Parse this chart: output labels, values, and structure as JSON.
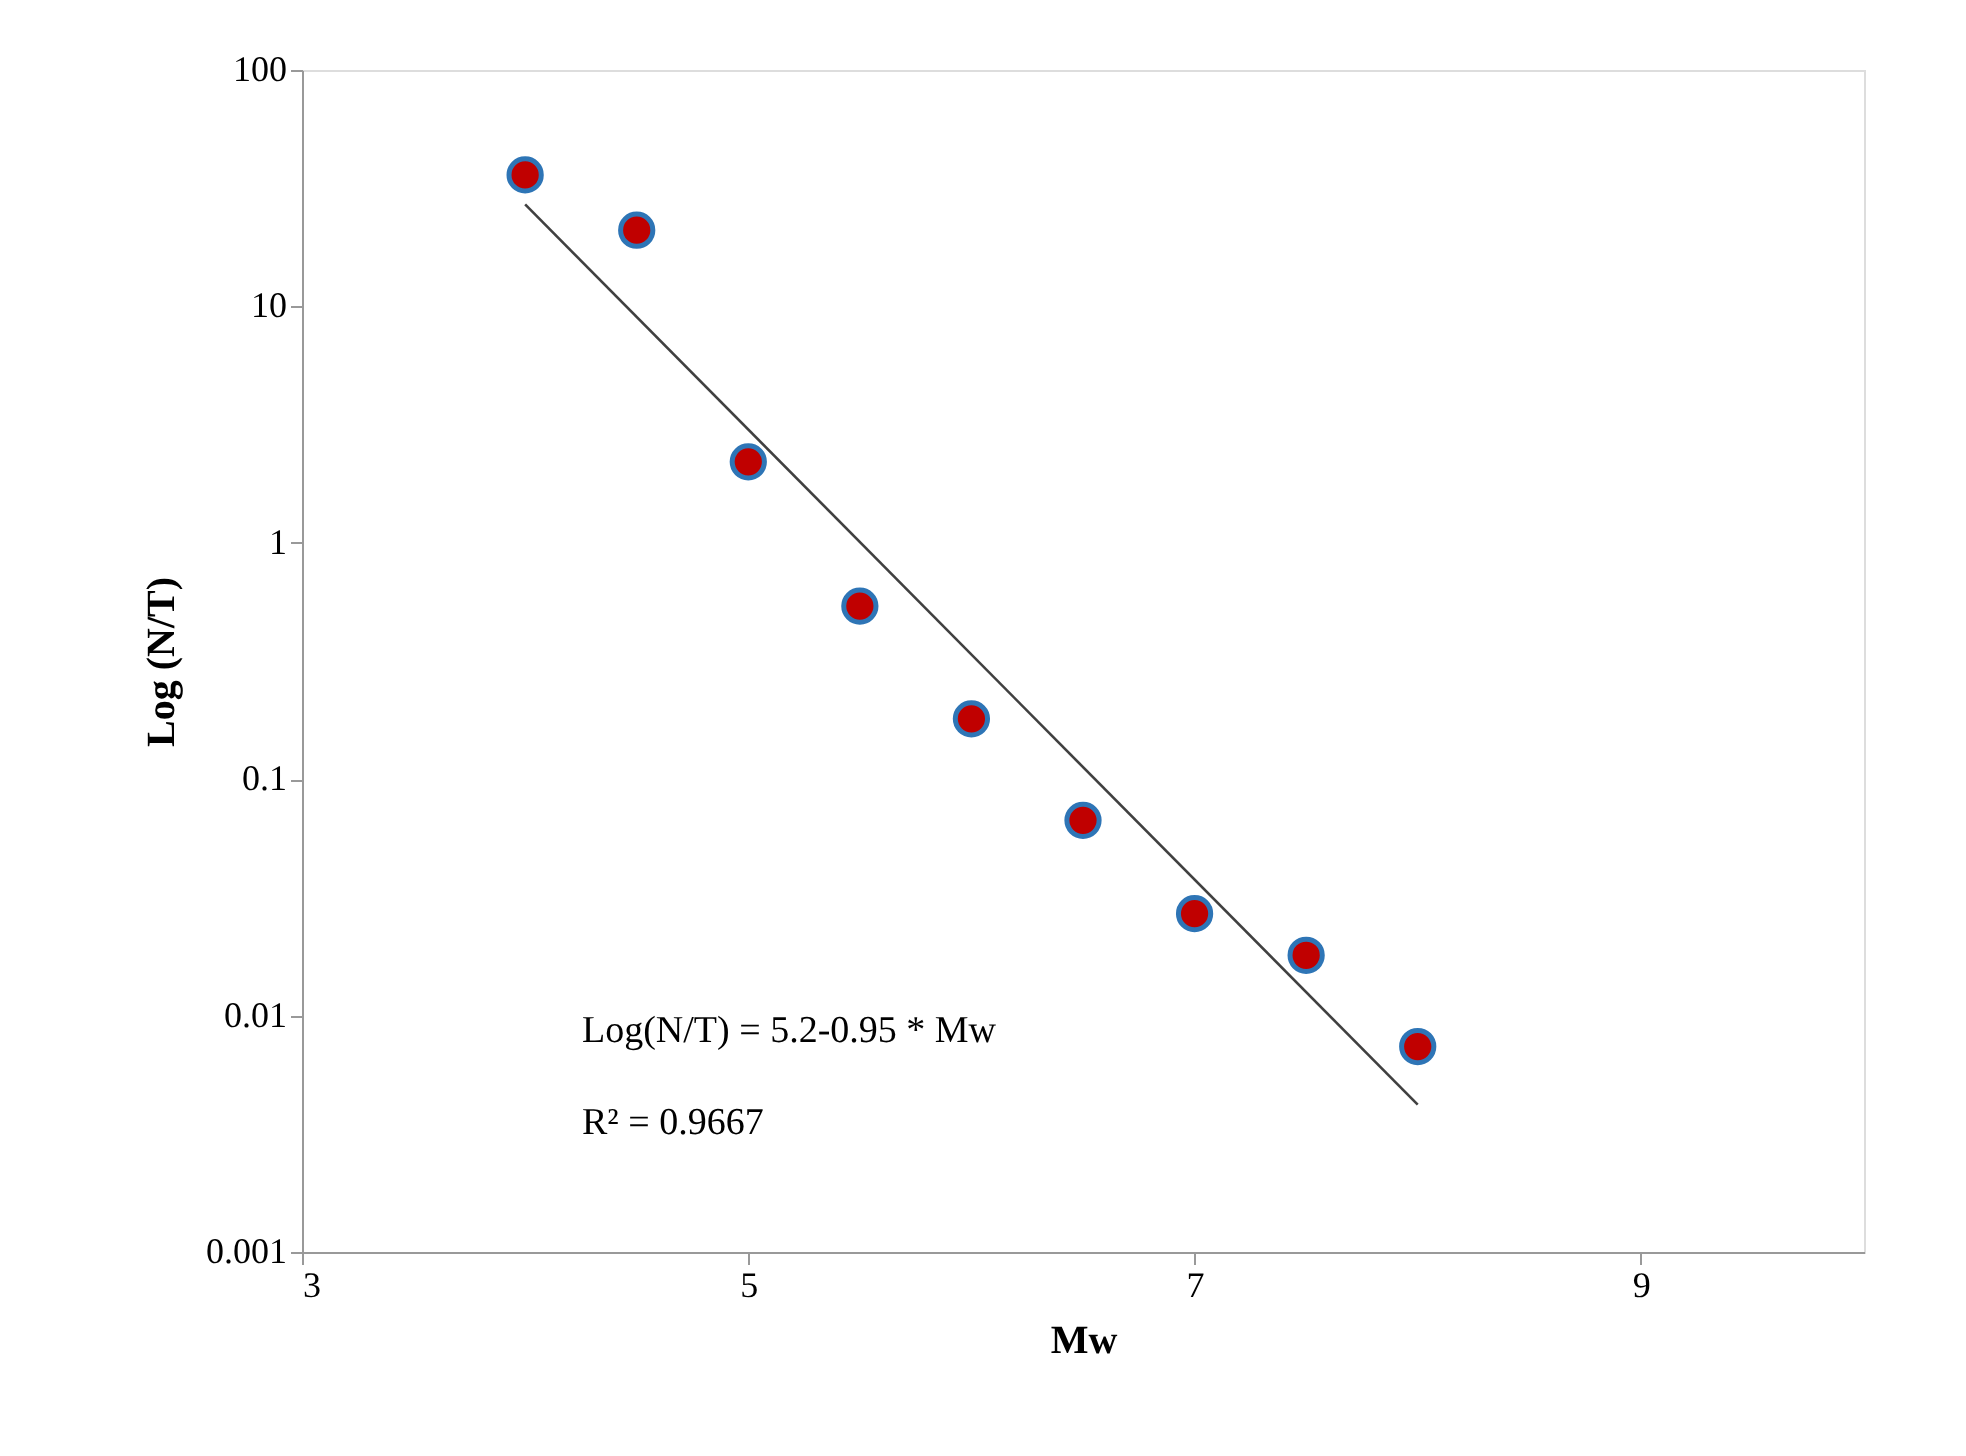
{
  "chart_data": {
    "type": "scatter",
    "xlabel": "Mw",
    "ylabel": "Log (N/T)",
    "xlim": [
      3,
      10
    ],
    "xticks": [
      3,
      5,
      7,
      9
    ],
    "ylim": [
      0.001,
      100
    ],
    "yticks": [
      0.001,
      0.01,
      0.1,
      1,
      10,
      100
    ],
    "log": true,
    "grid": false,
    "marker": "circle",
    "series": [
      {
        "color": "#c00000",
        "x": [
          4,
          4.5,
          5,
          5.5,
          6,
          6.5,
          7,
          7.5,
          8
        ],
        "values": [
          36,
          21,
          2.2,
          0.54,
          0.18,
          0.067,
          0.027,
          0.018,
          0.0074
        ]
      },
      {
        "type": "line",
        "color": "#404040",
        "line_style": "solid",
        "marker": "none",
        "x": [
          4,
          8
        ],
        "values": [
          27,
          0.0042
        ]
      }
    ],
    "annotations": [
      "Log(N/T) = 5.2-0.95  * Mw",
      "R² = 0.9667"
    ]
  }
}
